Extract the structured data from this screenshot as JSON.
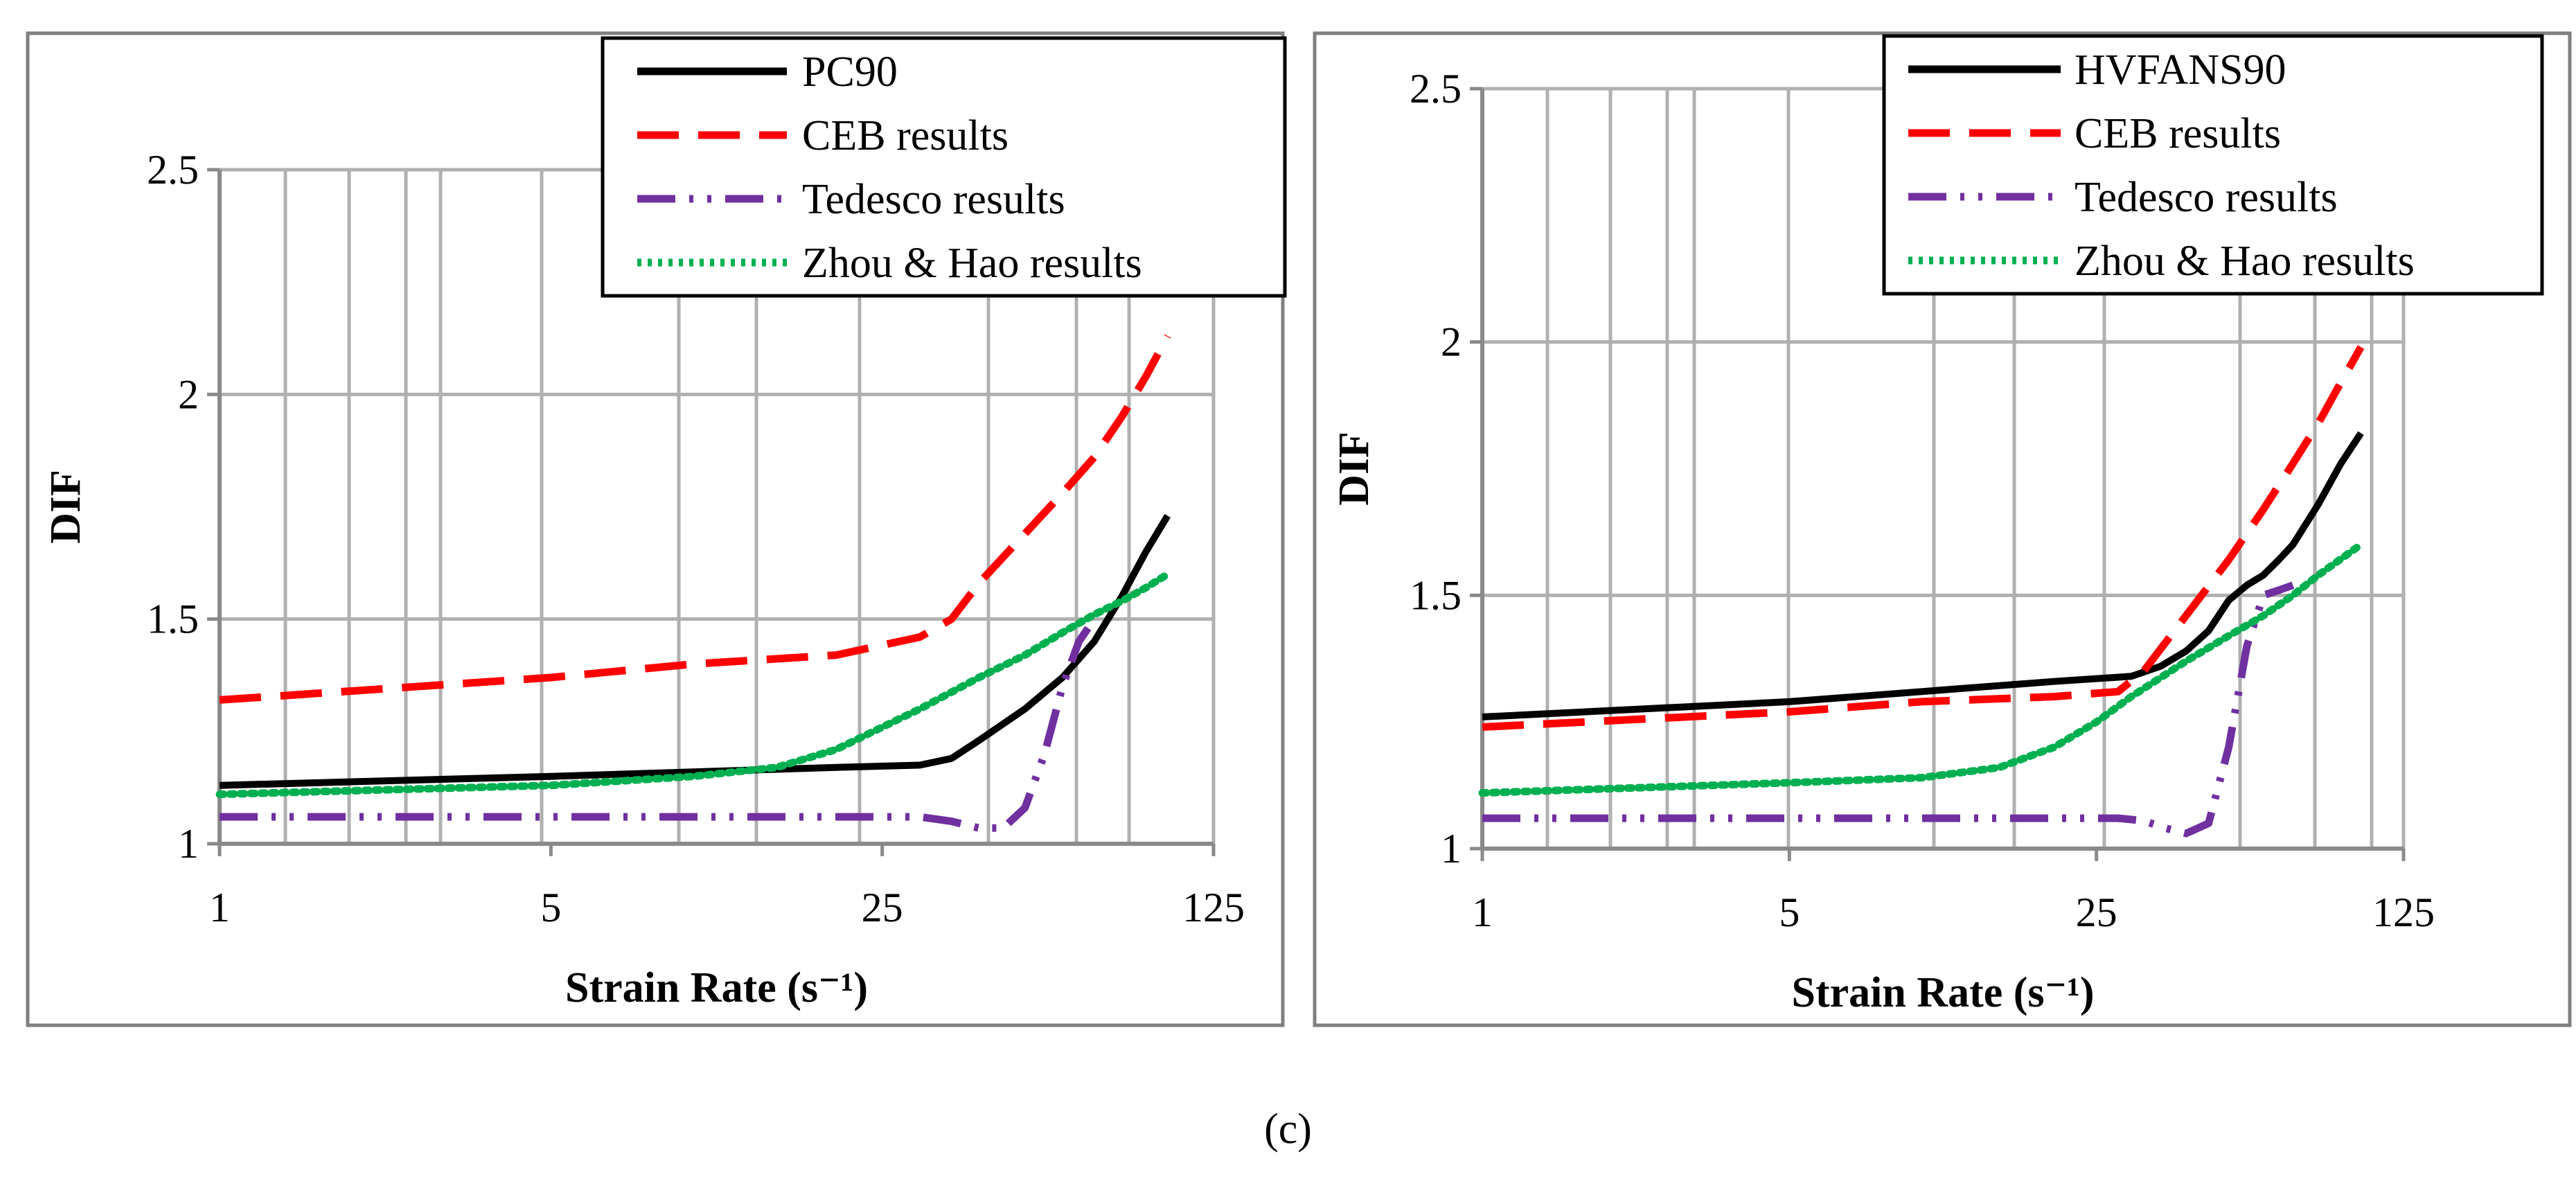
{
  "figure": {
    "caption": "(c)"
  },
  "chart_data": [
    {
      "type": "line",
      "xscale": "log",
      "x_ticks": [
        1,
        5,
        25,
        125
      ],
      "x_tick_labels": [
        "1",
        "5",
        "25",
        "125"
      ],
      "xlim": [
        1,
        125
      ],
      "ylim": [
        1,
        2.5
      ],
      "y_ticks": [
        1,
        1.5,
        2,
        2.5
      ],
      "y_tick_labels": [
        "1",
        "1.5",
        "2",
        "2.5"
      ],
      "xlabel": "Strain Rate (s⁻¹)",
      "ylabel": "DIF",
      "grid": true,
      "legend_position": "top-right",
      "series": [
        {
          "name": "PC90",
          "color": "#000000",
          "style": "solid",
          "x": [
            1,
            5,
            10,
            20,
            30,
            35,
            40,
            50,
            60,
            70,
            80,
            90,
            100
          ],
          "y": [
            1.13,
            1.15,
            1.16,
            1.17,
            1.175,
            1.19,
            1.23,
            1.3,
            1.37,
            1.45,
            1.55,
            1.65,
            1.73
          ]
        },
        {
          "name": "CEB results",
          "color": "#ff0000",
          "style": "dashed",
          "x": [
            1,
            5,
            10,
            20,
            30,
            35,
            40,
            50,
            60,
            70,
            80,
            90,
            100
          ],
          "y": [
            1.32,
            1.37,
            1.4,
            1.42,
            1.46,
            1.5,
            1.58,
            1.69,
            1.78,
            1.86,
            1.95,
            2.04,
            2.13
          ]
        },
        {
          "name": "Tedesco results",
          "color": "#7030a0",
          "style": "dashdotdot",
          "x": [
            1,
            5,
            10,
            20,
            30,
            35,
            40,
            45,
            50,
            55,
            60,
            65,
            70
          ],
          "y": [
            1.06,
            1.06,
            1.06,
            1.06,
            1.06,
            1.05,
            1.035,
            1.035,
            1.08,
            1.2,
            1.35,
            1.45,
            1.5
          ]
        },
        {
          "name": "Zhou & Hao results",
          "color": "#00b050",
          "style": "dotted",
          "x": [
            1,
            5,
            10,
            15,
            20,
            30,
            40,
            50,
            60,
            70,
            80,
            90,
            100
          ],
          "y": [
            1.11,
            1.13,
            1.15,
            1.17,
            1.21,
            1.3,
            1.37,
            1.42,
            1.47,
            1.51,
            1.54,
            1.57,
            1.6
          ]
        }
      ]
    },
    {
      "type": "line",
      "xscale": "log",
      "x_ticks": [
        1,
        5,
        25,
        125
      ],
      "x_tick_labels": [
        "1",
        "5",
        "25",
        "125"
      ],
      "xlim": [
        1,
        125
      ],
      "ylim": [
        1,
        2.5
      ],
      "y_ticks": [
        1,
        1.5,
        2,
        2.5
      ],
      "y_tick_labels": [
        "1",
        "1.5",
        "2",
        "2.5"
      ],
      "xlabel": "Strain Rate (s⁻¹)",
      "ylabel": "DIF",
      "grid": true,
      "legend_position": "top-right",
      "series": [
        {
          "name": "HVFANS90",
          "color": "#000000",
          "style": "solid",
          "x": [
            1,
            5,
            10,
            20,
            30,
            35,
            40,
            45,
            50,
            55,
            60,
            65,
            70,
            80,
            90,
            100
          ],
          "y": [
            1.26,
            1.29,
            1.31,
            1.33,
            1.34,
            1.36,
            1.39,
            1.43,
            1.49,
            1.52,
            1.54,
            1.57,
            1.6,
            1.68,
            1.76,
            1.82
          ]
        },
        {
          "name": "CEB results",
          "color": "#ff0000",
          "style": "dashed",
          "x": [
            1,
            5,
            10,
            20,
            28,
            32,
            40,
            50,
            60,
            70,
            80,
            90,
            100
          ],
          "y": [
            1.24,
            1.27,
            1.29,
            1.3,
            1.31,
            1.35,
            1.46,
            1.57,
            1.67,
            1.76,
            1.84,
            1.92,
            1.99
          ]
        },
        {
          "name": "Tedesco results",
          "color": "#7030a0",
          "style": "dashdotdot",
          "x": [
            1,
            5,
            10,
            20,
            28,
            32,
            36,
            40,
            45,
            50,
            55,
            60,
            65,
            70
          ],
          "y": [
            1.06,
            1.06,
            1.06,
            1.06,
            1.06,
            1.055,
            1.04,
            1.03,
            1.05,
            1.2,
            1.4,
            1.5,
            1.51,
            1.52
          ]
        },
        {
          "name": "Zhou & Hao results",
          "color": "#00b050",
          "style": "dotted",
          "x": [
            1,
            5,
            10,
            15,
            20,
            25,
            30,
            40,
            50,
            60,
            70,
            80,
            100
          ],
          "y": [
            1.11,
            1.13,
            1.14,
            1.16,
            1.2,
            1.25,
            1.3,
            1.37,
            1.42,
            1.46,
            1.5,
            1.54,
            1.6
          ]
        }
      ]
    }
  ]
}
